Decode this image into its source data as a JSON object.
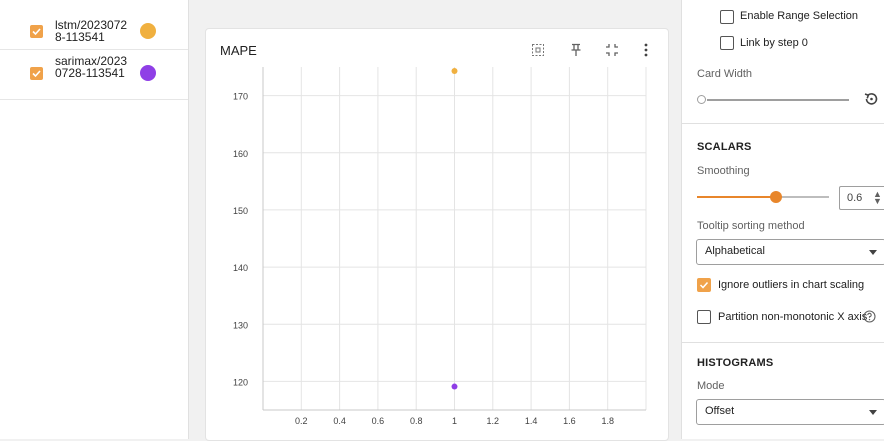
{
  "runs": [
    {
      "label": "lstm/20230728-113541",
      "checked": true,
      "color": "#f0b03f"
    },
    {
      "label": "sarimax/20230728-113541",
      "checked": true,
      "color": "#8f3fe6"
    }
  ],
  "card": {
    "title": "MAPE",
    "tools": [
      "fit-to-data-icon",
      "pin-icon",
      "collapse-icon",
      "more-vert-icon"
    ]
  },
  "settings": {
    "enable_range_selection": {
      "label": "Enable Range Selection",
      "checked": false
    },
    "link_by_step": {
      "label": "Link by step 0",
      "checked": false
    },
    "card_width_label": "Card Width",
    "scalars_title": "SCALARS",
    "smoothing_label": "Smoothing",
    "smoothing_value": "0.6",
    "smoothing_fraction": 0.6,
    "tooltip_sort_label": "Tooltip sorting method",
    "tooltip_sort_value": "Alphabetical",
    "ignore_outliers": {
      "label": "Ignore outliers in chart scaling",
      "checked": true
    },
    "partition_x": {
      "label": "Partition non-monotonic X axis",
      "checked": false
    },
    "histograms_title": "HISTOGRAMS",
    "mode_label": "Mode",
    "mode_value": "Offset"
  },
  "colors": {
    "accent": "#f0a24a",
    "slider": "#e8862b"
  },
  "chart_data": {
    "type": "scatter",
    "title": "MAPE",
    "xlim": [
      0,
      2
    ],
    "ylim": [
      115,
      175
    ],
    "x_ticks": [
      "0.2",
      "0.4",
      "0.6",
      "0.8",
      "1",
      "1.2",
      "1.4",
      "1.6",
      "1.8"
    ],
    "y_ticks": [
      "120",
      "130",
      "140",
      "150",
      "160",
      "170"
    ],
    "grid": true,
    "series": [
      {
        "name": "lstm/20230728-113541",
        "color": "#f0b03f",
        "points": [
          [
            1,
            174.3
          ]
        ]
      },
      {
        "name": "sarimax/20230728-113541",
        "color": "#8f3fe6",
        "points": [
          [
            1,
            119.1
          ]
        ]
      }
    ]
  }
}
